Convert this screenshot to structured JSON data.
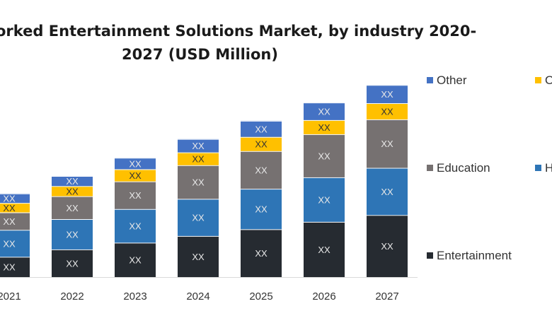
{
  "chart_data": {
    "type": "bar",
    "stacked": true,
    "title": "orked Entertainment Solutions Market, by industry 2020-",
    "subtitle": "2027 (USD Million)",
    "categories": [
      "2021",
      "2022",
      "2023",
      "2024",
      "2025",
      "2026",
      "2027"
    ],
    "series": [
      {
        "name": "Entertainment",
        "color": "#262b31",
        "values": [
          30,
          41,
          51,
          61,
          71,
          82,
          92
        ],
        "labels": [
          "XX",
          "XX",
          "XX",
          "XX",
          "XX",
          "XX",
          "XX"
        ]
      },
      {
        "name": "H",
        "color": "#2e75b6",
        "values": [
          40,
          45,
          50,
          55,
          60,
          66,
          70
        ],
        "labels": [
          "XX",
          "XX",
          "XX",
          "XX",
          "XX",
          "XX",
          "XX"
        ]
      },
      {
        "name": "Education",
        "color": "#767171",
        "values": [
          26,
          34,
          41,
          50,
          56,
          64,
          72
        ],
        "labels": [
          "XX",
          "XX",
          "XX",
          "XX",
          "XX",
          "XX",
          "XX"
        ]
      },
      {
        "name": "O",
        "color": "#ffc000",
        "values": [
          14,
          15,
          18,
          19,
          21,
          21,
          24
        ],
        "labels": [
          "XX",
          "XX",
          "XX",
          "XX",
          "XX",
          "XX",
          "XX"
        ]
      },
      {
        "name": "Other",
        "color": "#4472c4",
        "values": [
          14,
          15,
          17,
          20,
          24,
          26,
          27
        ],
        "labels": [
          "XX",
          "XX",
          "XX",
          "XX",
          "XX",
          "XX",
          "XX"
        ]
      }
    ],
    "ylim": [
      0,
      300
    ],
    "grid": false,
    "legend_position": "right"
  },
  "legend": {
    "items": [
      {
        "name": "Other",
        "color": "#4472c4"
      },
      {
        "name": "O",
        "color": "#ffc000"
      },
      {
        "name": "Education",
        "color": "#767171"
      },
      {
        "name": "H",
        "color": "#2e75b6"
      },
      {
        "name": "Entertainment",
        "color": "#262b31"
      }
    ]
  }
}
